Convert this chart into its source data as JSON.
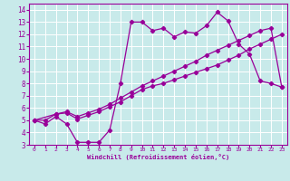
{
  "xlabel": "Windchill (Refroidissement éolien,°C)",
  "bg_color": "#c8eaea",
  "grid_color": "#ffffff",
  "line_color": "#990099",
  "xlim": [
    -0.5,
    23.5
  ],
  "ylim": [
    3,
    14.5
  ],
  "xticks": [
    0,
    1,
    2,
    3,
    4,
    5,
    6,
    7,
    8,
    9,
    10,
    11,
    12,
    13,
    14,
    15,
    16,
    17,
    18,
    19,
    20,
    21,
    22,
    23
  ],
  "yticks": [
    3,
    4,
    5,
    6,
    7,
    8,
    9,
    10,
    11,
    12,
    13,
    14
  ],
  "line1_x": [
    0,
    1,
    2,
    3,
    4,
    5,
    6,
    7,
    8,
    9,
    10,
    11,
    12,
    13,
    14,
    15,
    16,
    17,
    18,
    19,
    20,
    21,
    22,
    23
  ],
  "line1_y": [
    5.0,
    4.7,
    5.3,
    4.7,
    3.2,
    3.2,
    3.2,
    4.2,
    8.0,
    13.0,
    13.0,
    12.3,
    12.5,
    11.8,
    12.2,
    12.1,
    12.7,
    13.8,
    13.1,
    11.2,
    10.4,
    8.2,
    8.0,
    7.7
  ],
  "line2_x": [
    0,
    2,
    3,
    4,
    5,
    6,
    7,
    8,
    9,
    10,
    11,
    12,
    13,
    14,
    15,
    16,
    17,
    18,
    19,
    20,
    21,
    22,
    23
  ],
  "line2_y": [
    5.0,
    5.5,
    5.6,
    5.1,
    5.4,
    5.7,
    6.1,
    6.5,
    7.0,
    7.5,
    7.8,
    8.0,
    8.3,
    8.6,
    8.9,
    9.2,
    9.5,
    9.9,
    10.3,
    10.8,
    11.2,
    11.6,
    12.0
  ],
  "line3_x": [
    0,
    1,
    2,
    3,
    4,
    5,
    6,
    7,
    8,
    9,
    10,
    11,
    12,
    13,
    14,
    15,
    16,
    17,
    18,
    19,
    20,
    21,
    22,
    23
  ],
  "line3_y": [
    5.0,
    5.0,
    5.5,
    5.7,
    5.3,
    5.6,
    5.9,
    6.3,
    6.8,
    7.3,
    7.8,
    8.2,
    8.6,
    9.0,
    9.4,
    9.8,
    10.3,
    10.7,
    11.1,
    11.5,
    11.9,
    12.3,
    12.5,
    7.7
  ]
}
